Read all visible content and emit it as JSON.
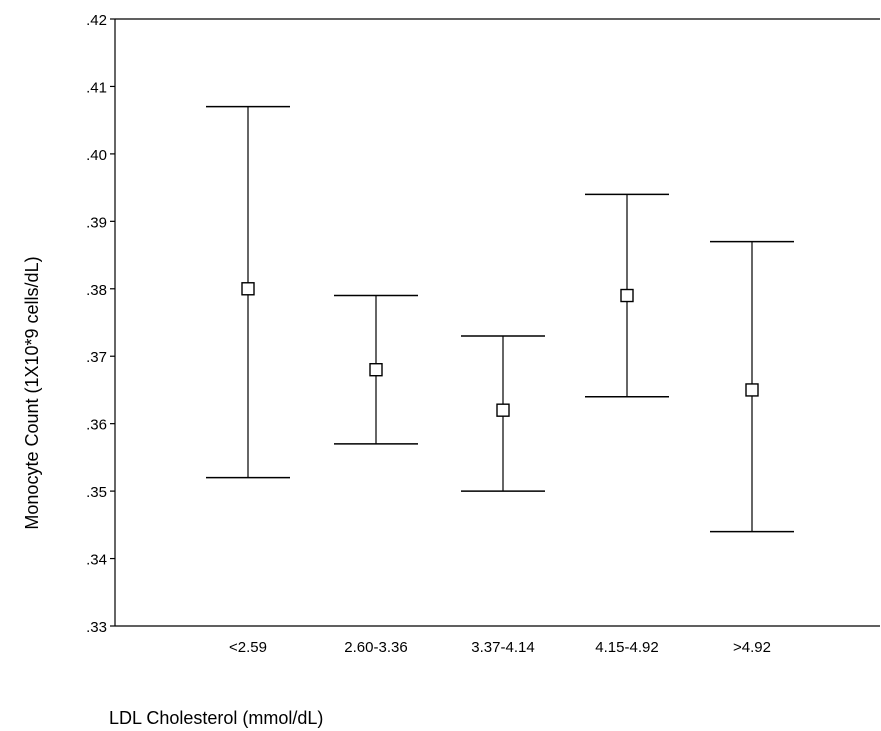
{
  "chart_data": {
    "type": "errorbar",
    "xlabel": "LDL Cholesterol (mmol/dL)",
    "ylabel": "Monocyte Count (1X10*9 cells/dL)",
    "ylim": [
      0.33,
      0.42
    ],
    "yticks": [
      0.33,
      0.34,
      0.35,
      0.36,
      0.37,
      0.38,
      0.39,
      0.4,
      0.41,
      0.42
    ],
    "ytick_labels": [
      ".33",
      ".34",
      ".35",
      ".36",
      ".37",
      ".38",
      ".39",
      ".40",
      ".41",
      ".42"
    ],
    "grid": false,
    "categories": [
      "<2.59",
      "2.60-3.36",
      "3.37-4.14",
      "4.15-4.92",
      ">4.92"
    ],
    "means": [
      0.38,
      0.368,
      0.362,
      0.379,
      0.365
    ],
    "lower": [
      0.352,
      0.357,
      0.35,
      0.364,
      0.344
    ],
    "upper": [
      0.407,
      0.379,
      0.373,
      0.394,
      0.387
    ]
  }
}
